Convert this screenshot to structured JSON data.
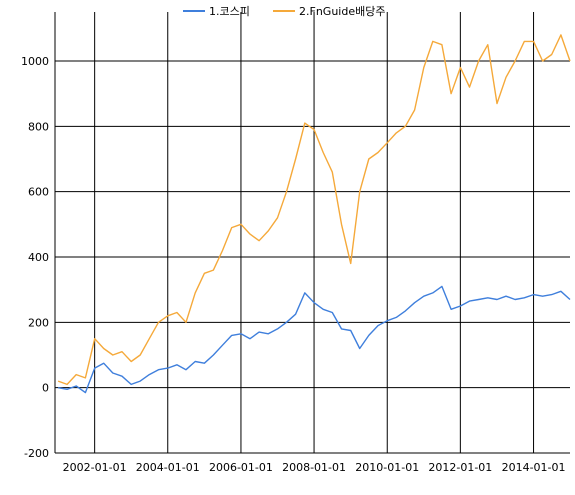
{
  "chart_data": {
    "type": "line",
    "title": "",
    "xlabel": "",
    "ylabel": "",
    "ylim": [
      -200,
      1150
    ],
    "xlim": [
      "2000-12-01",
      "2014-12-31"
    ],
    "grid": true,
    "legend_position": "top-center",
    "y_ticks": [
      -200,
      0,
      200,
      400,
      600,
      800,
      1000
    ],
    "y_tick_labels": [
      "-200",
      "0",
      "200",
      "400",
      "600",
      "800",
      "1000"
    ],
    "x_ticks": [
      "2002-01-01",
      "2004-01-01",
      "2006-01-01",
      "2008-01-01",
      "2010-01-01",
      "2012-01-01",
      "2014-01-01"
    ],
    "x_tick_labels": [
      "2002-01-01",
      "2004-01-01",
      "2006-01-01",
      "2008-01-01",
      "2010-01-01",
      "2012-01-01",
      "2014-01-01"
    ],
    "series": [
      {
        "name": "1.코스피",
        "color": "#3f7fdc",
        "x": [
          "2001-01-01",
          "2001-04-01",
          "2001-07-01",
          "2001-10-01",
          "2002-01-01",
          "2002-04-01",
          "2002-07-01",
          "2002-10-01",
          "2003-01-01",
          "2003-04-01",
          "2003-07-01",
          "2003-10-01",
          "2004-01-01",
          "2004-04-01",
          "2004-07-01",
          "2004-10-01",
          "2005-01-01",
          "2005-04-01",
          "2005-07-01",
          "2005-10-01",
          "2006-01-01",
          "2006-04-01",
          "2006-07-01",
          "2006-10-01",
          "2007-01-01",
          "2007-04-01",
          "2007-07-01",
          "2007-10-01",
          "2008-01-01",
          "2008-04-01",
          "2008-07-01",
          "2008-10-01",
          "2009-01-01",
          "2009-04-01",
          "2009-07-01",
          "2009-10-01",
          "2010-01-01",
          "2010-04-01",
          "2010-07-01",
          "2010-10-01",
          "2011-01-01",
          "2011-04-01",
          "2011-07-01",
          "2011-10-01",
          "2012-01-01",
          "2012-04-01",
          "2012-07-01",
          "2012-10-01",
          "2013-01-01",
          "2013-04-01",
          "2013-07-01",
          "2013-10-01",
          "2014-01-01",
          "2014-04-01",
          "2014-07-01",
          "2014-10-01",
          "2014-12-31"
        ],
        "values": [
          0,
          -5,
          5,
          -15,
          60,
          75,
          45,
          35,
          10,
          20,
          40,
          55,
          60,
          70,
          55,
          80,
          75,
          100,
          130,
          160,
          165,
          150,
          170,
          165,
          180,
          200,
          225,
          290,
          260,
          240,
          230,
          180,
          175,
          120,
          160,
          190,
          205,
          215,
          235,
          260,
          280,
          290,
          310,
          240,
          250,
          265,
          270,
          275,
          270,
          280,
          270,
          275,
          285,
          280,
          285,
          295,
          270
        ]
      },
      {
        "name": "2.FnGuide배당주",
        "color": "#f5a93a",
        "x": [
          "2001-01-01",
          "2001-04-01",
          "2001-07-01",
          "2001-10-01",
          "2002-01-01",
          "2002-04-01",
          "2002-07-01",
          "2002-10-01",
          "2003-01-01",
          "2003-04-01",
          "2003-07-01",
          "2003-10-01",
          "2004-01-01",
          "2004-04-01",
          "2004-07-01",
          "2004-10-01",
          "2005-01-01",
          "2005-04-01",
          "2005-07-01",
          "2005-10-01",
          "2006-01-01",
          "2006-04-01",
          "2006-07-01",
          "2006-10-01",
          "2007-01-01",
          "2007-04-01",
          "2007-07-01",
          "2007-10-01",
          "2008-01-01",
          "2008-04-01",
          "2008-07-01",
          "2008-10-01",
          "2009-01-01",
          "2009-04-01",
          "2009-07-01",
          "2009-10-01",
          "2010-01-01",
          "2010-04-01",
          "2010-07-01",
          "2010-10-01",
          "2011-01-01",
          "2011-04-01",
          "2011-07-01",
          "2011-10-01",
          "2012-01-01",
          "2012-04-01",
          "2012-07-01",
          "2012-10-01",
          "2013-01-01",
          "2013-04-01",
          "2013-07-01",
          "2013-10-01",
          "2014-01-01",
          "2014-04-01",
          "2014-07-01",
          "2014-10-01",
          "2014-12-31"
        ],
        "values": [
          20,
          10,
          40,
          30,
          150,
          120,
          100,
          110,
          80,
          100,
          150,
          200,
          220,
          230,
          200,
          290,
          350,
          360,
          420,
          490,
          500,
          470,
          450,
          480,
          520,
          600,
          700,
          810,
          790,
          720,
          660,
          500,
          380,
          600,
          700,
          720,
          750,
          780,
          800,
          850,
          980,
          1060,
          1050,
          900,
          980,
          920,
          1000,
          1050,
          870,
          950,
          1000,
          1060,
          1060,
          1000,
          1020,
          1080,
          1000
        ]
      }
    ]
  }
}
